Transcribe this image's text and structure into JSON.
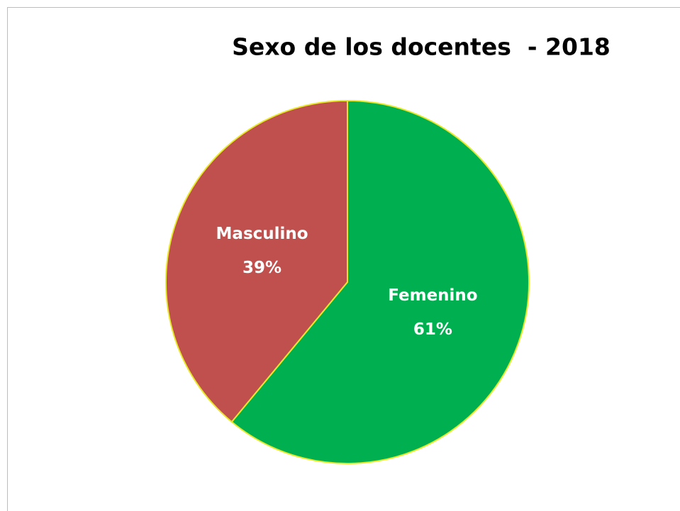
{
  "chart_data": {
    "type": "pie",
    "title": "Sexo de los docentes  - 2018",
    "categories": [
      "Femenino",
      "Masculino"
    ],
    "values": [
      61,
      39
    ],
    "value_labels": [
      "61%",
      "39%"
    ],
    "colors": [
      "#00b050",
      "#c0504d"
    ],
    "edge_color": "#e8e82a"
  }
}
